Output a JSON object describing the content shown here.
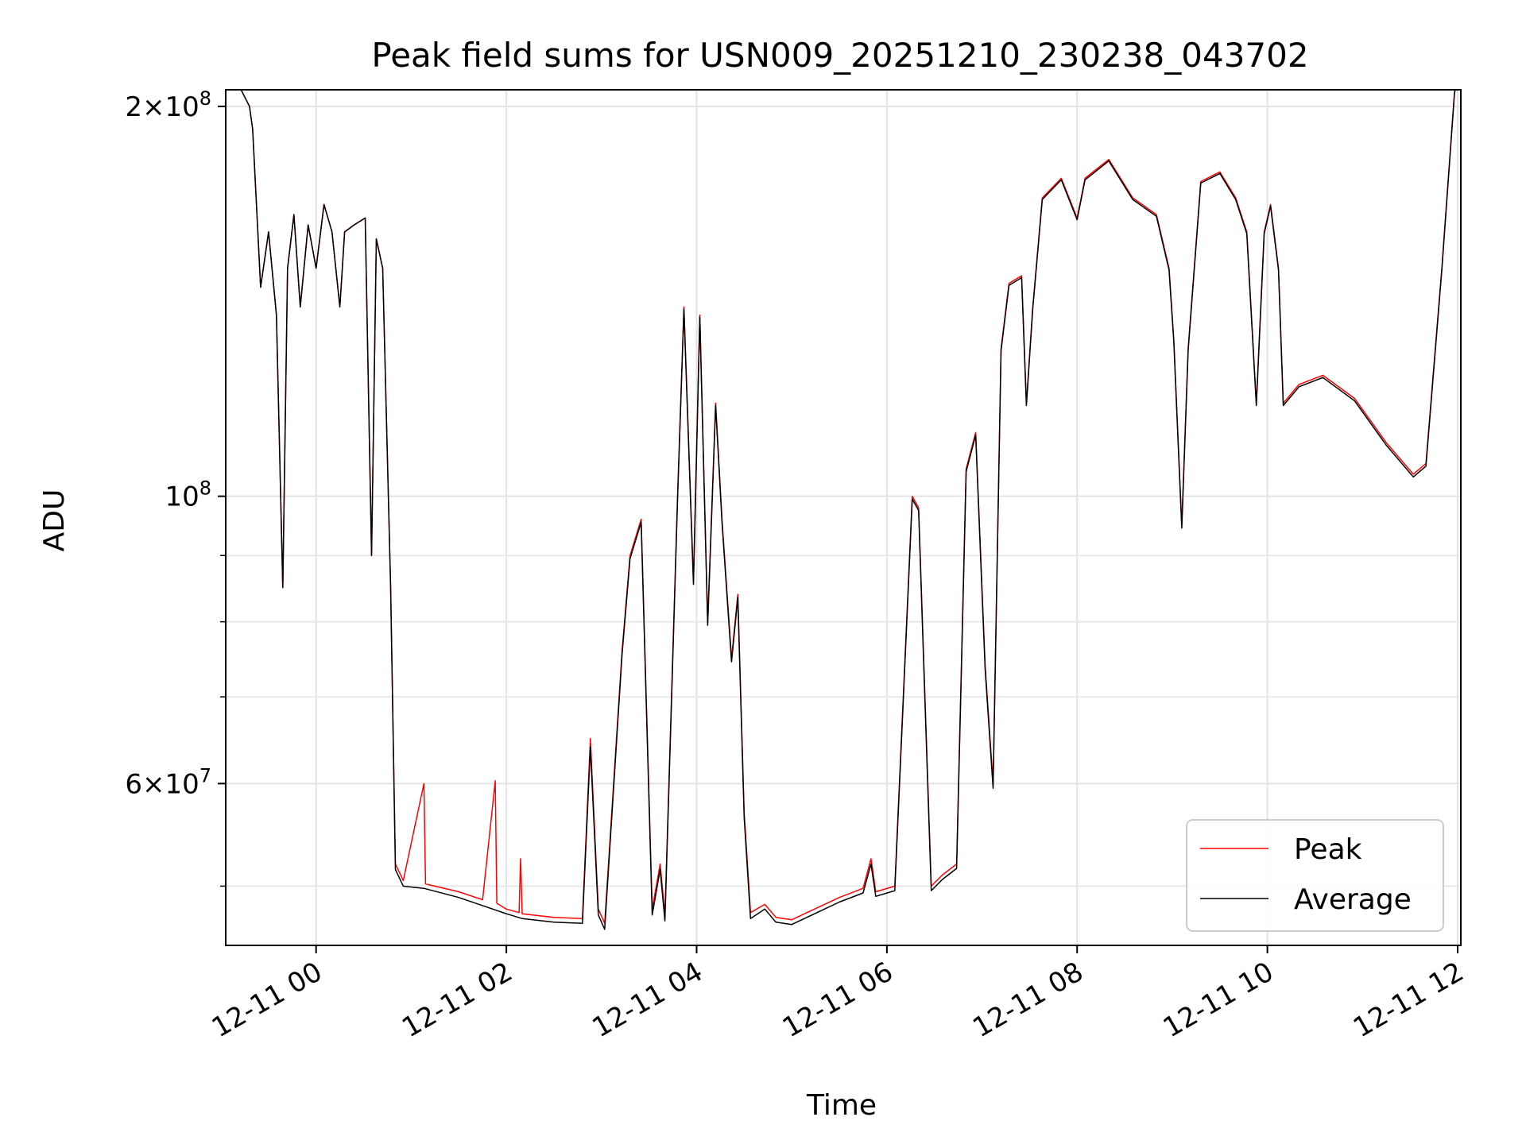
{
  "chart_data": {
    "type": "line",
    "title": "Peak field sums for USN009_20251210_230238_043702",
    "xlabel": "Time",
    "ylabel": "ADU",
    "y_scale": "log",
    "ylim": [
      45000000,
      206000000
    ],
    "xlim": [
      "2025-12-10 23:03",
      "2025-12-11 12:02"
    ],
    "grid": true,
    "legend_position": "lower-right",
    "x_ticks": [
      {
        "value": "2025-12-11 00:00",
        "label": "12-11 00"
      },
      {
        "value": "2025-12-11 02:00",
        "label": "12-11 02"
      },
      {
        "value": "2025-12-11 04:00",
        "label": "12-11 04"
      },
      {
        "value": "2025-12-11 06:00",
        "label": "12-11 06"
      },
      {
        "value": "2025-12-11 08:00",
        "label": "12-11 08"
      },
      {
        "value": "2025-12-11 10:00",
        "label": "12-11 10"
      },
      {
        "value": "2025-12-11 12:00",
        "label": "12-11 12"
      }
    ],
    "y_ticks": [
      {
        "value": 60000000,
        "label_base": "6×10",
        "label_exp": "7"
      },
      {
        "value": 100000000,
        "label_base": "10",
        "label_exp": "8"
      },
      {
        "value": 200000000,
        "label_base": "2×10",
        "label_exp": "8"
      }
    ],
    "y_minor_gridlines": [
      50000000,
      70000000,
      80000000,
      90000000
    ],
    "series": [
      {
        "name": "Peak",
        "color": "#ff0000",
        "points": [
          [
            "2025-12-10 23:05",
            215000000
          ],
          [
            "2025-12-10 23:18",
            200000000
          ],
          [
            "2025-12-10 23:20",
            192000000
          ],
          [
            "2025-12-10 23:25",
            145000000
          ],
          [
            "2025-12-10 23:30",
            160000000
          ],
          [
            "2025-12-10 23:35",
            138000000
          ],
          [
            "2025-12-10 23:39",
            85000000
          ],
          [
            "2025-12-10 23:42",
            150000000
          ],
          [
            "2025-12-10 23:46",
            165000000
          ],
          [
            "2025-12-10 23:50",
            140000000
          ],
          [
            "2025-12-10 23:55",
            162000000
          ],
          [
            "2025-12-11 00:00",
            150000000
          ],
          [
            "2025-12-11 00:05",
            168000000
          ],
          [
            "2025-12-11 00:10",
            160000000
          ],
          [
            "2025-12-11 00:15",
            140000000
          ],
          [
            "2025-12-11 00:18",
            160000000
          ],
          [
            "2025-12-11 00:24",
            162000000
          ],
          [
            "2025-12-11 00:31",
            164000000
          ],
          [
            "2025-12-11 00:35",
            90000000
          ],
          [
            "2025-12-11 00:38",
            158000000
          ],
          [
            "2025-12-11 00:42",
            150000000
          ],
          [
            "2025-12-11 00:47",
            85000000
          ],
          [
            "2025-12-11 00:50",
            52000000
          ],
          [
            "2025-12-11 00:55",
            50500000
          ],
          [
            "2025-12-11 01:08",
            60000000
          ],
          [
            "2025-12-11 01:09",
            50200000
          ],
          [
            "2025-12-11 01:30",
            49500000
          ],
          [
            "2025-12-11 01:45",
            48800000
          ],
          [
            "2025-12-11 01:53",
            60300000
          ],
          [
            "2025-12-11 01:54",
            48500000
          ],
          [
            "2025-12-11 02:00",
            48000000
          ],
          [
            "2025-12-11 02:08",
            47700000
          ],
          [
            "2025-12-11 02:09",
            52500000
          ],
          [
            "2025-12-11 02:10",
            47600000
          ],
          [
            "2025-12-11 02:30",
            47300000
          ],
          [
            "2025-12-11 02:48",
            47200000
          ],
          [
            "2025-12-11 02:53",
            65000000
          ],
          [
            "2025-12-11 02:58",
            48000000
          ],
          [
            "2025-12-11 03:02",
            46800000
          ],
          [
            "2025-12-11 03:13",
            76000000
          ],
          [
            "2025-12-11 03:18",
            90000000
          ],
          [
            "2025-12-11 03:25",
            96000000
          ],
          [
            "2025-12-11 03:32",
            48000000
          ],
          [
            "2025-12-11 03:37",
            52000000
          ],
          [
            "2025-12-11 03:40",
            47500000
          ],
          [
            "2025-12-11 03:48",
            100000000
          ],
          [
            "2025-12-11 03:52",
            140000000
          ],
          [
            "2025-12-11 03:58",
            86000000
          ],
          [
            "2025-12-11 04:02",
            138000000
          ],
          [
            "2025-12-11 04:07",
            80000000
          ],
          [
            "2025-12-11 04:12",
            118000000
          ],
          [
            "2025-12-11 04:16",
            96000000
          ],
          [
            "2025-12-11 04:22",
            75000000
          ],
          [
            "2025-12-11 04:26",
            84000000
          ],
          [
            "2025-12-11 04:30",
            57000000
          ],
          [
            "2025-12-11 04:34",
            47700000
          ],
          [
            "2025-12-11 04:43",
            48400000
          ],
          [
            "2025-12-11 04:50",
            47300000
          ],
          [
            "2025-12-11 05:00",
            47100000
          ],
          [
            "2025-12-11 05:30",
            49000000
          ],
          [
            "2025-12-11 05:45",
            49800000
          ],
          [
            "2025-12-11 05:50",
            52500000
          ],
          [
            "2025-12-11 05:53",
            49500000
          ],
          [
            "2025-12-11 06:05",
            50000000
          ],
          [
            "2025-12-11 06:16",
            100000000
          ],
          [
            "2025-12-11 06:20",
            98000000
          ],
          [
            "2025-12-11 06:28",
            50000000
          ],
          [
            "2025-12-11 06:35",
            51000000
          ],
          [
            "2025-12-11 06:44",
            52000000
          ],
          [
            "2025-12-11 06:50",
            105000000
          ],
          [
            "2025-12-11 06:56",
            112000000
          ],
          [
            "2025-12-11 07:02",
            74000000
          ],
          [
            "2025-12-11 07:07",
            60000000
          ],
          [
            "2025-12-11 07:12",
            130000000
          ],
          [
            "2025-12-11 07:17",
            146000000
          ],
          [
            "2025-12-11 07:25",
            148000000
          ],
          [
            "2025-12-11 07:28",
            118000000
          ],
          [
            "2025-12-11 07:32",
            140000000
          ],
          [
            "2025-12-11 07:38",
            170000000
          ],
          [
            "2025-12-11 07:50",
            176000000
          ],
          [
            "2025-12-11 08:00",
            164000000
          ],
          [
            "2025-12-11 08:05",
            176000000
          ],
          [
            "2025-12-11 08:20",
            182000000
          ],
          [
            "2025-12-11 08:35",
            170000000
          ],
          [
            "2025-12-11 08:50",
            165000000
          ],
          [
            "2025-12-11 08:58",
            150000000
          ],
          [
            "2025-12-11 09:01",
            132000000
          ],
          [
            "2025-12-11 09:06",
            95000000
          ],
          [
            "2025-12-11 09:10",
            130000000
          ],
          [
            "2025-12-11 09:18",
            175000000
          ],
          [
            "2025-12-11 09:30",
            178000000
          ],
          [
            "2025-12-11 09:40",
            170000000
          ],
          [
            "2025-12-11 09:47",
            160000000
          ],
          [
            "2025-12-11 09:53",
            118000000
          ],
          [
            "2025-12-11 09:58",
            160000000
          ],
          [
            "2025-12-11 10:02",
            168000000
          ],
          [
            "2025-12-11 10:07",
            150000000
          ],
          [
            "2025-12-11 10:10",
            118000000
          ],
          [
            "2025-12-11 10:20",
            122000000
          ],
          [
            "2025-12-11 10:35",
            124000000
          ],
          [
            "2025-12-11 10:55",
            119000000
          ],
          [
            "2025-12-11 11:15",
            110000000
          ],
          [
            "2025-12-11 11:32",
            104000000
          ],
          [
            "2025-12-11 11:40",
            106000000
          ],
          [
            "2025-12-11 11:50",
            150000000
          ],
          [
            "2025-12-11 11:58",
            205000000
          ],
          [
            "2025-12-11 12:01",
            215000000
          ]
        ]
      },
      {
        "name": "Average",
        "color": "#000000",
        "points": [
          [
            "2025-12-10 23:05",
            215000000
          ],
          [
            "2025-12-10 23:18",
            200000000
          ],
          [
            "2025-12-10 23:20",
            192000000
          ],
          [
            "2025-12-10 23:25",
            145000000
          ],
          [
            "2025-12-10 23:30",
            160000000
          ],
          [
            "2025-12-10 23:35",
            138000000
          ],
          [
            "2025-12-10 23:39",
            85000000
          ],
          [
            "2025-12-10 23:42",
            150000000
          ],
          [
            "2025-12-10 23:46",
            165000000
          ],
          [
            "2025-12-10 23:50",
            140000000
          ],
          [
            "2025-12-10 23:55",
            162000000
          ],
          [
            "2025-12-11 00:00",
            150000000
          ],
          [
            "2025-12-11 00:05",
            168000000
          ],
          [
            "2025-12-11 00:10",
            160000000
          ],
          [
            "2025-12-11 00:15",
            140000000
          ],
          [
            "2025-12-11 00:18",
            160000000
          ],
          [
            "2025-12-11 00:24",
            162000000
          ],
          [
            "2025-12-11 00:31",
            164000000
          ],
          [
            "2025-12-11 00:35",
            90000000
          ],
          [
            "2025-12-11 00:38",
            158000000
          ],
          [
            "2025-12-11 00:42",
            150000000
          ],
          [
            "2025-12-11 00:47",
            85000000
          ],
          [
            "2025-12-11 00:50",
            51500000
          ],
          [
            "2025-12-11 00:55",
            50000000
          ],
          [
            "2025-12-11 01:08",
            49800000
          ],
          [
            "2025-12-11 01:30",
            49000000
          ],
          [
            "2025-12-11 01:45",
            48300000
          ],
          [
            "2025-12-11 02:00",
            47600000
          ],
          [
            "2025-12-11 02:10",
            47200000
          ],
          [
            "2025-12-11 02:30",
            46900000
          ],
          [
            "2025-12-11 02:48",
            46800000
          ],
          [
            "2025-12-11 02:53",
            64000000
          ],
          [
            "2025-12-11 02:58",
            47500000
          ],
          [
            "2025-12-11 03:02",
            46300000
          ],
          [
            "2025-12-11 03:13",
            75500000
          ],
          [
            "2025-12-11 03:18",
            89500000
          ],
          [
            "2025-12-11 03:25",
            95500000
          ],
          [
            "2025-12-11 03:32",
            47500000
          ],
          [
            "2025-12-11 03:37",
            51500000
          ],
          [
            "2025-12-11 03:40",
            47000000
          ],
          [
            "2025-12-11 03:48",
            99500000
          ],
          [
            "2025-12-11 03:52",
            139500000
          ],
          [
            "2025-12-11 03:58",
            85500000
          ],
          [
            "2025-12-11 04:02",
            137500000
          ],
          [
            "2025-12-11 04:07",
            79500000
          ],
          [
            "2025-12-11 04:12",
            117500000
          ],
          [
            "2025-12-11 04:16",
            95500000
          ],
          [
            "2025-12-11 04:22",
            74500000
          ],
          [
            "2025-12-11 04:26",
            83500000
          ],
          [
            "2025-12-11 04:30",
            56500000
          ],
          [
            "2025-12-11 04:34",
            47200000
          ],
          [
            "2025-12-11 04:43",
            48000000
          ],
          [
            "2025-12-11 04:50",
            46900000
          ],
          [
            "2025-12-11 05:00",
            46700000
          ],
          [
            "2025-12-11 05:30",
            48600000
          ],
          [
            "2025-12-11 05:45",
            49400000
          ],
          [
            "2025-12-11 05:50",
            52000000
          ],
          [
            "2025-12-11 05:53",
            49100000
          ],
          [
            "2025-12-11 06:05",
            49600000
          ],
          [
            "2025-12-11 06:16",
            99500000
          ],
          [
            "2025-12-11 06:20",
            97500000
          ],
          [
            "2025-12-11 06:28",
            49600000
          ],
          [
            "2025-12-11 06:35",
            50600000
          ],
          [
            "2025-12-11 06:44",
            51600000
          ],
          [
            "2025-12-11 06:50",
            104500000
          ],
          [
            "2025-12-11 06:56",
            111500000
          ],
          [
            "2025-12-11 07:02",
            73500000
          ],
          [
            "2025-12-11 07:07",
            59500000
          ],
          [
            "2025-12-11 07:12",
            129500000
          ],
          [
            "2025-12-11 07:17",
            145500000
          ],
          [
            "2025-12-11 07:25",
            147500000
          ],
          [
            "2025-12-11 07:28",
            117500000
          ],
          [
            "2025-12-11 07:32",
            139500000
          ],
          [
            "2025-12-11 07:38",
            169500000
          ],
          [
            "2025-12-11 07:50",
            175500000
          ],
          [
            "2025-12-11 08:00",
            163500000
          ],
          [
            "2025-12-11 08:05",
            175500000
          ],
          [
            "2025-12-11 08:20",
            181500000
          ],
          [
            "2025-12-11 08:35",
            169500000
          ],
          [
            "2025-12-11 08:50",
            164500000
          ],
          [
            "2025-12-11 08:58",
            149500000
          ],
          [
            "2025-12-11 09:01",
            131500000
          ],
          [
            "2025-12-11 09:06",
            94500000
          ],
          [
            "2025-12-11 09:10",
            129500000
          ],
          [
            "2025-12-11 09:18",
            174500000
          ],
          [
            "2025-12-11 09:30",
            177500000
          ],
          [
            "2025-12-11 09:40",
            169500000
          ],
          [
            "2025-12-11 09:47",
            159500000
          ],
          [
            "2025-12-11 09:53",
            117500000
          ],
          [
            "2025-12-11 09:58",
            159500000
          ],
          [
            "2025-12-11 10:02",
            167500000
          ],
          [
            "2025-12-11 10:07",
            149500000
          ],
          [
            "2025-12-11 10:10",
            117500000
          ],
          [
            "2025-12-11 10:20",
            121500000
          ],
          [
            "2025-12-11 10:35",
            123500000
          ],
          [
            "2025-12-11 10:55",
            118500000
          ],
          [
            "2025-12-11 11:15",
            109500000
          ],
          [
            "2025-12-11 11:32",
            103500000
          ],
          [
            "2025-12-11 11:40",
            105500000
          ],
          [
            "2025-12-11 11:50",
            149500000
          ],
          [
            "2025-12-11 11:58",
            204500000
          ],
          [
            "2025-12-11 12:01",
            215000000
          ]
        ]
      }
    ]
  }
}
